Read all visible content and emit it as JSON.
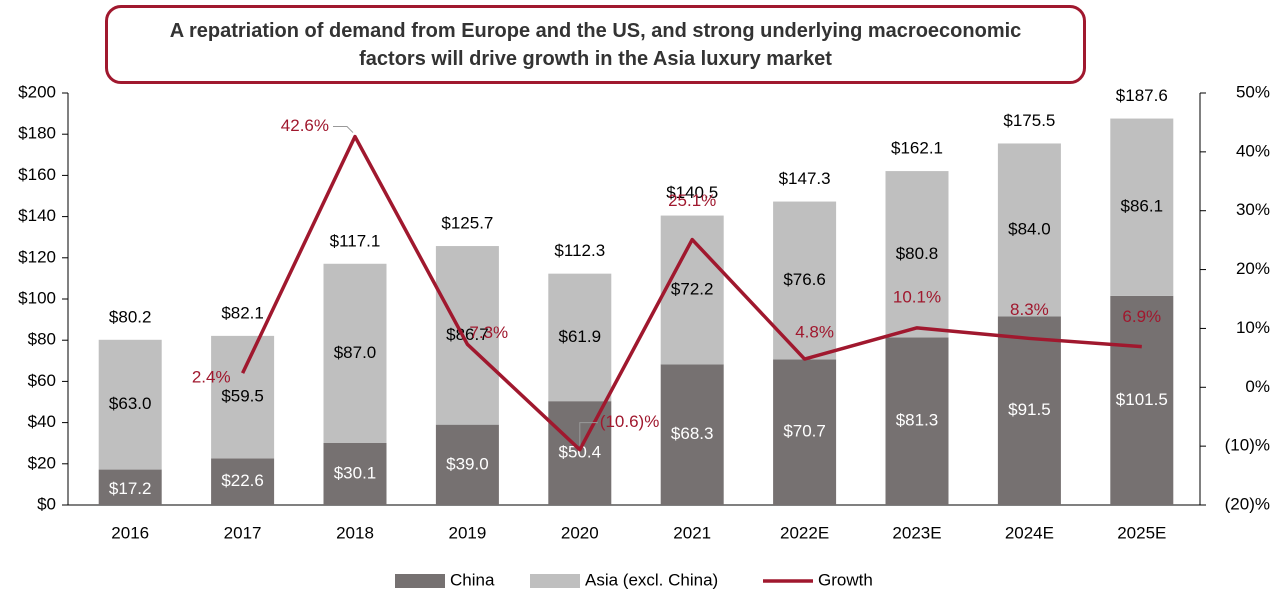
{
  "chart_data": {
    "type": "bar-line",
    "title": "A repatriation of demand from Europe and the US, and strong underlying macroeconomic factors will drive growth in the Asia luxury market",
    "categories": [
      "2016",
      "2017",
      "2018",
      "2019",
      "2020",
      "2021",
      "2022E",
      "2023E",
      "2024E",
      "2025E"
    ],
    "series": [
      {
        "name": "China",
        "type": "bar",
        "color": "#767171",
        "label_color": "#ffffff",
        "values": [
          17.2,
          22.6,
          30.1,
          39.0,
          50.4,
          68.3,
          70.7,
          81.3,
          91.5,
          101.5
        ],
        "value_labels": [
          "$17.2",
          "$22.6",
          "$30.1",
          "$39.0",
          "$50.4",
          "$68.3",
          "$70.7",
          "$81.3",
          "$91.5",
          "$101.5"
        ]
      },
      {
        "name": "Asia (excl. China)",
        "type": "bar",
        "color": "#bfbfbf",
        "label_color": "#000000",
        "values": [
          63.0,
          59.5,
          87.0,
          86.7,
          61.9,
          72.2,
          76.6,
          80.8,
          84.0,
          86.1
        ],
        "value_labels": [
          "$63.0",
          "$59.5",
          "$87.0",
          "$86.7",
          "$61.9",
          "$72.2",
          "$76.6",
          "$80.8",
          "$84.0",
          "$86.1"
        ]
      },
      {
        "name": "Growth",
        "type": "line",
        "axis": "y2",
        "color": "#a0182e",
        "values": [
          null,
          2.4,
          42.6,
          7.3,
          -10.6,
          25.1,
          4.8,
          10.1,
          8.3,
          6.9
        ],
        "value_labels": [
          null,
          "2.4%",
          "42.6%",
          "7.3%",
          "(10.6)%",
          "25.1%",
          "4.8%",
          "10.1%",
          "8.3%",
          "6.9%"
        ]
      }
    ],
    "totals": {
      "values": [
        80.2,
        82.1,
        117.1,
        125.7,
        112.3,
        140.5,
        147.3,
        162.1,
        175.5,
        187.6
      ],
      "value_labels": [
        "$80.2",
        "$82.1",
        "$117.1",
        "$125.7",
        "$112.3",
        "$140.5",
        "$147.3",
        "$162.1",
        "$175.5",
        "$187.6"
      ]
    },
    "stacked": true,
    "ylim": [
      0,
      200
    ],
    "yticks": [
      {
        "value": 0,
        "label": "$0"
      },
      {
        "value": 20,
        "label": "$20"
      },
      {
        "value": 40,
        "label": "$40"
      },
      {
        "value": 60,
        "label": "$60"
      },
      {
        "value": 80,
        "label": "$80"
      },
      {
        "value": 100,
        "label": "$100"
      },
      {
        "value": 120,
        "label": "$120"
      },
      {
        "value": 140,
        "label": "$140"
      },
      {
        "value": 160,
        "label": "$160"
      },
      {
        "value": 180,
        "label": "$180"
      },
      {
        "value": 200,
        "label": "$200"
      }
    ],
    "y2lim": [
      -20,
      50
    ],
    "y2ticks": [
      {
        "value": -20,
        "label": "(20)%"
      },
      {
        "value": -10,
        "label": "(10)%"
      },
      {
        "value": 0,
        "label": "0%"
      },
      {
        "value": 10,
        "label": "10%"
      },
      {
        "value": 20,
        "label": "20%"
      },
      {
        "value": 30,
        "label": "30%"
      },
      {
        "value": 40,
        "label": "40%"
      },
      {
        "value": 50,
        "label": "50%"
      }
    ],
    "legend": "bottom"
  }
}
